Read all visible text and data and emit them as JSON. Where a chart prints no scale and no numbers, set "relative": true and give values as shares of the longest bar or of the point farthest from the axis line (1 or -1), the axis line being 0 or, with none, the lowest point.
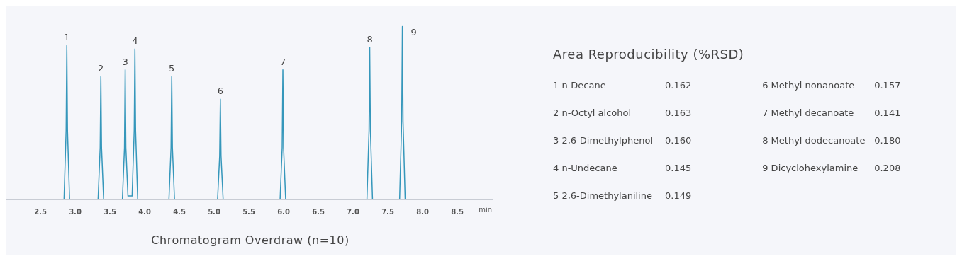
{
  "chart_data": [
    {
      "type": "line",
      "title": "Chromatogram Overdraw (n=10)",
      "xlabel": "min",
      "relative": true,
      "xlim": [
        2.0,
        9.0
      ],
      "xticks": [
        {
          "value": 2.5,
          "label": "2.5"
        },
        {
          "value": 3,
          "label": "3.0"
        },
        {
          "value": 3.5,
          "label": "3.5"
        },
        {
          "value": 4,
          "label": "4.0"
        },
        {
          "value": 4.5,
          "label": "4.5"
        },
        {
          "value": 5,
          "label": "5.0"
        },
        {
          "value": 5.5,
          "label": "5.5"
        },
        {
          "value": 6,
          "label": "6.0"
        },
        {
          "value": 6.5,
          "label": "6.5"
        },
        {
          "value": 7,
          "label": "7.0"
        },
        {
          "value": 7.5,
          "label": "7.5"
        },
        {
          "value": 8,
          "label": "8.0"
        },
        {
          "value": 8.5,
          "label": "8.5"
        }
      ],
      "tick_labels": "x",
      "grid": false,
      "legend": false,
      "marker": "none",
      "series": [
        {
          "color": "#3597bb",
          "x": [
            2.0,
            2.84,
            2.87,
            2.88,
            2.89,
            2.92,
            3.33,
            3.36,
            3.37,
            3.38,
            3.41,
            3.68,
            3.71,
            3.72,
            3.73,
            3.76,
            3.82,
            3.85,
            3.86,
            3.87,
            3.9,
            4.35,
            4.38,
            4.39,
            4.4,
            4.43,
            5.05,
            5.08,
            5.09,
            5.1,
            5.13,
            5.95,
            5.98,
            5.99,
            6.0,
            6.03,
            7.2,
            7.23,
            7.24,
            7.25,
            7.28,
            7.67,
            7.7,
            7.71,
            7.72,
            7.75,
            9.0
          ],
          "values": [
            0,
            0,
            0.4,
            0.89,
            0.4,
            0,
            0,
            0.3,
            0.71,
            0.3,
            0,
            0,
            0.3,
            0.75,
            0.3,
            0.02,
            0.02,
            0.4,
            0.87,
            0.4,
            0,
            0,
            0.3,
            0.71,
            0.3,
            0,
            0,
            0.25,
            0.58,
            0.25,
            0,
            0,
            0.3,
            0.75,
            0.3,
            0,
            0,
            0.4,
            0.88,
            0.4,
            0,
            0,
            0.45,
            1,
            0.45,
            0,
            0
          ]
        }
      ],
      "annotations": [
        {
          "text": "1",
          "x": 2.88,
          "y": 0.89
        },
        {
          "text": "2",
          "x": 3.37,
          "y": 0.71
        },
        {
          "text": "3",
          "x": 3.72,
          "y": 0.75
        },
        {
          "text": "4",
          "x": 3.86,
          "y": 0.87
        },
        {
          "text": "5",
          "x": 4.39,
          "y": 0.71
        },
        {
          "text": "6",
          "x": 5.09,
          "y": 0.58
        },
        {
          "text": "7",
          "x": 5.99,
          "y": 0.75
        },
        {
          "text": "8",
          "x": 7.24,
          "y": 0.88
        },
        {
          "text": "9",
          "x": 7.71,
          "y": 1
        }
      ]
    },
    {
      "type": "other",
      "title": "Area Reproducibility (%RSD)",
      "value_labels": [
        "0.162",
        "0.163",
        "0.160",
        "0.145",
        "0.149",
        "0.157",
        "0.141",
        "0.180",
        "0.208"
      ],
      "categories": [
        "1 n-Decane",
        "2 n-Octyl alcohol",
        "3 2,6-Dimethylphenol",
        "4 n-Undecane",
        "5 2,6-Dimethylaniline",
        "6 Methyl nonanoate",
        "7 Methyl decanoate",
        "8 Methyl dodecanoate",
        "9 Dicyclohexylamine"
      ]
    }
  ]
}
